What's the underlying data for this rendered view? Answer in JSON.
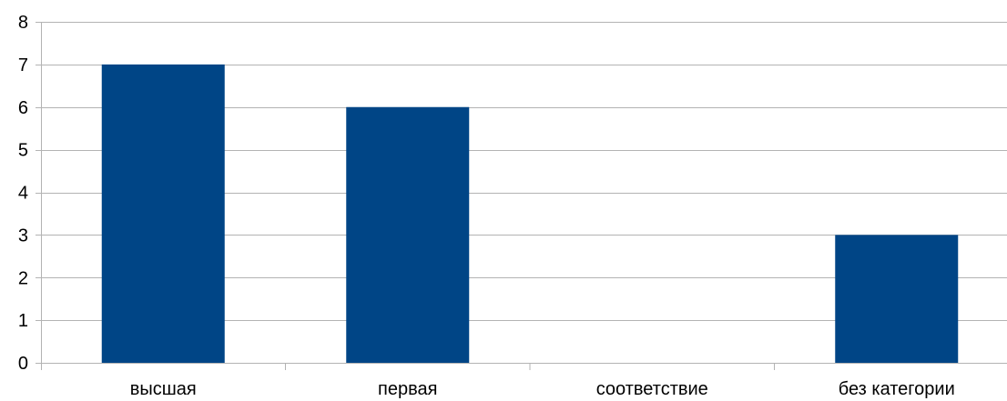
{
  "chart_data": {
    "type": "bar",
    "categories": [
      "высшая",
      "первая",
      "соответствие",
      "без категории"
    ],
    "values": [
      7,
      6,
      0,
      3
    ],
    "title": "",
    "xlabel": "",
    "ylabel": "",
    "ylim": [
      0,
      8
    ],
    "yticks": [
      "0",
      "1",
      "2",
      "3",
      "4",
      "5",
      "6",
      "7",
      "8"
    ],
    "grid": true,
    "legend": "none",
    "bar_color": "#004586",
    "grid_color": "#b3b3b3"
  }
}
